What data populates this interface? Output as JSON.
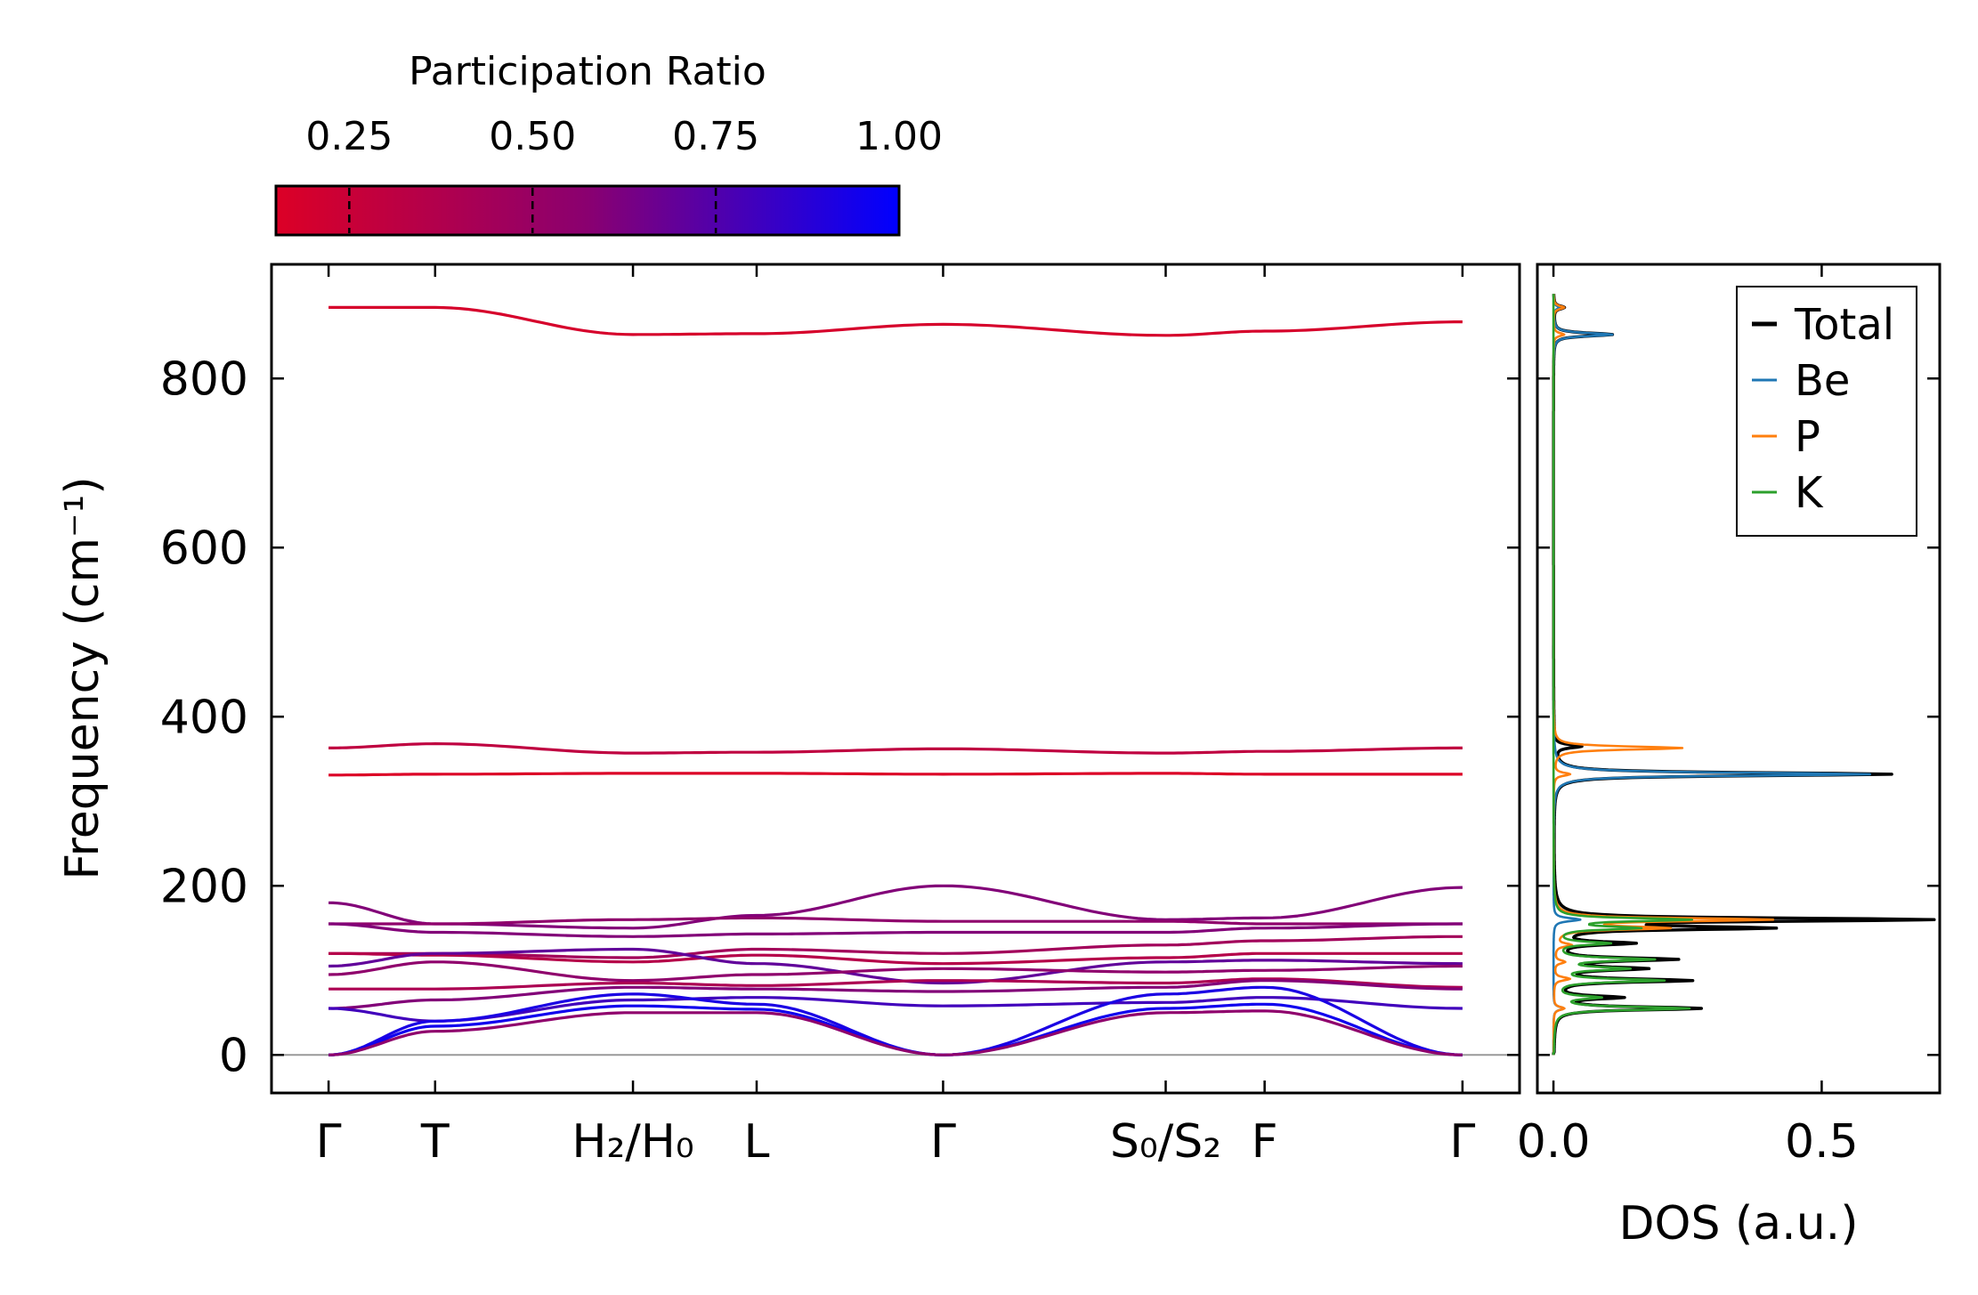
{
  "colorbar": {
    "title": "Participation Ratio",
    "ticks": [
      0.25,
      0.5,
      0.75,
      1.0
    ],
    "tick_labels": [
      "0.25",
      "0.50",
      "0.75",
      "1.00"
    ],
    "range": [
      0.15,
      1.0
    ],
    "color_low": "#dc0026",
    "color_mid": "#8a0070",
    "color_high": "#0000ff"
  },
  "chart_data": [
    {
      "type": "line",
      "title": "",
      "ylabel": "Frequency (cm⁻¹)",
      "xlabel": "",
      "ylim": [
        -45,
        935
      ],
      "yticks": [
        0,
        200,
        400,
        600,
        800
      ],
      "ytick_labels": [
        "0",
        "200",
        "400",
        "600",
        "800"
      ],
      "x": [
        0,
        0.56,
        1.6,
        2.25,
        3.23,
        4.4,
        4.92,
        5.96
      ],
      "xlim": [
        -0.3,
        6.26
      ],
      "xtick_labels": [
        "Γ",
        "T",
        "H₂/H₀",
        "L",
        "Γ",
        "S₀/S₂",
        "F",
        "Γ"
      ],
      "zero_line_color": "#999999",
      "series": [
        {
          "name": "band-16",
          "values": [
            884,
            884,
            852,
            853,
            864,
            851,
            856,
            867
          ],
          "pr": 0.18
        },
        {
          "name": "band-15",
          "values": [
            363,
            368,
            357,
            358,
            362,
            357,
            359,
            363
          ],
          "pr": 0.3
        },
        {
          "name": "band-14",
          "values": [
            331,
            332,
            333,
            333,
            332,
            333,
            332,
            332
          ],
          "pr": 0.15
        },
        {
          "name": "band-13",
          "values": [
            180,
            155,
            150,
            165,
            200,
            160,
            162,
            198
          ],
          "pr": 0.6
        },
        {
          "name": "band-12",
          "values": [
            155,
            155,
            160,
            162,
            158,
            158,
            155,
            155
          ],
          "pr": 0.55
        },
        {
          "name": "band-11",
          "values": [
            155,
            145,
            140,
            143,
            145,
            145,
            150,
            155
          ],
          "pr": 0.6
        },
        {
          "name": "band-10",
          "values": [
            120,
            120,
            115,
            125,
            120,
            130,
            135,
            140
          ],
          "pr": 0.45
        },
        {
          "name": "band-09",
          "values": [
            120,
            118,
            110,
            118,
            108,
            115,
            120,
            120
          ],
          "pr": 0.35
        },
        {
          "name": "band-08",
          "values": [
            105,
            120,
            125,
            108,
            85,
            110,
            112,
            108
          ],
          "pr": 0.7
        },
        {
          "name": "band-07",
          "values": [
            95,
            110,
            88,
            95,
            102,
            98,
            100,
            105
          ],
          "pr": 0.55
        },
        {
          "name": "band-06",
          "values": [
            78,
            78,
            85,
            82,
            88,
            85,
            90,
            80
          ],
          "pr": 0.4
        },
        {
          "name": "band-05",
          "values": [
            55,
            65,
            80,
            78,
            75,
            80,
            88,
            78
          ],
          "pr": 0.6
        },
        {
          "name": "band-04",
          "values": [
            55,
            40,
            65,
            68,
            58,
            62,
            68,
            55
          ],
          "pr": 0.8
        },
        {
          "name": "band-03",
          "values": [
            0,
            40,
            72,
            60,
            0,
            72,
            80,
            0
          ],
          "pr": 0.92
        },
        {
          "name": "band-02",
          "values": [
            0,
            34,
            58,
            54,
            0,
            55,
            60,
            0
          ],
          "pr": 0.95
        },
        {
          "name": "band-01",
          "values": [
            0,
            28,
            50,
            50,
            0,
            50,
            52,
            0
          ],
          "pr": 0.55
        }
      ]
    },
    {
      "type": "line",
      "title": "",
      "xlabel": "DOS (a.u.)",
      "ylabel": "",
      "xlim": [
        -0.03,
        0.72
      ],
      "ylim": [
        -45,
        935
      ],
      "xticks": [
        0.0,
        0.5
      ],
      "xtick_labels": [
        "0.0",
        "0.5"
      ],
      "legend_position": "top-right",
      "series": [
        {
          "name": "Total",
          "color": "#000000",
          "peaks": [
            [
              884,
              0.02
            ],
            [
              852,
              0.11
            ],
            [
              365,
              0.05
            ],
            [
              332,
              0.63
            ],
            [
              160,
              0.69
            ],
            [
              150,
              0.38
            ],
            [
              132,
              0.14
            ],
            [
              113,
              0.22
            ],
            [
              102,
              0.16
            ],
            [
              88,
              0.25
            ],
            [
              68,
              0.12
            ],
            [
              55,
              0.27
            ]
          ]
        },
        {
          "name": "Be",
          "color": "#1f77b4",
          "peaks": [
            [
              884,
              0.01
            ],
            [
              852,
              0.11
            ],
            [
              332,
              0.59
            ],
            [
              160,
              0.05
            ],
            [
              55,
              0.02
            ]
          ]
        },
        {
          "name": "P",
          "color": "#ff7f0e",
          "peaks": [
            [
              884,
              0.02
            ],
            [
              852,
              0.02
            ],
            [
              363,
              0.24
            ],
            [
              332,
              0.03
            ],
            [
              160,
              0.4
            ],
            [
              150,
              0.2
            ],
            [
              130,
              0.03
            ],
            [
              110,
              0.02
            ],
            [
              90,
              0.03
            ],
            [
              55,
              0.02
            ]
          ]
        },
        {
          "name": "K",
          "color": "#2ca02c",
          "peaks": [
            [
              160,
              0.25
            ],
            [
              150,
              0.15
            ],
            [
              132,
              0.1
            ],
            [
              113,
              0.18
            ],
            [
              102,
              0.13
            ],
            [
              88,
              0.2
            ],
            [
              68,
              0.08
            ],
            [
              55,
              0.25
            ]
          ]
        }
      ]
    }
  ]
}
